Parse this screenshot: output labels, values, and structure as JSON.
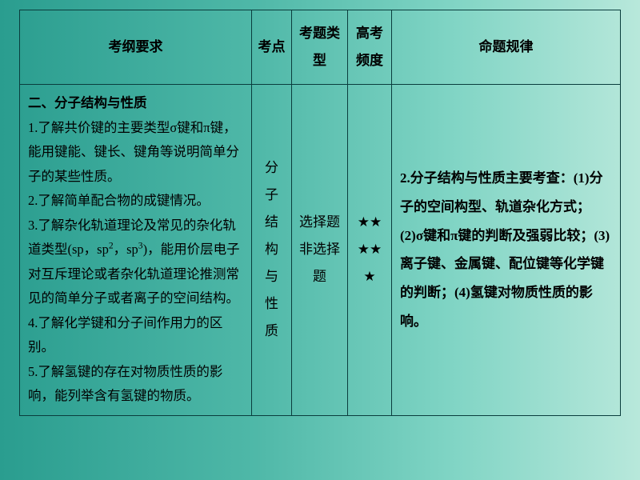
{
  "colors": {
    "border": "#0a3d3d",
    "text": "#000000",
    "bg_gradient_left": "#2a9d8f",
    "bg_gradient_right": "#b8e8db"
  },
  "typography": {
    "font_family": "SimSun",
    "header_fontsize_pt": 13,
    "body_fontsize_pt": 12,
    "line_height": 2.0
  },
  "table": {
    "headers": {
      "requirement": "考纲要求",
      "point": "考点",
      "qtype": "考题类型",
      "freq": "高考频度",
      "rule": "命题规律"
    },
    "row": {
      "requirement_title": "二、分子结构与性质",
      "requirement_items": [
        "1.了解共价键的主要类型σ键和π键，能用键能、键长、键角等说明简单分子的某些性质。",
        "2.了解简单配合物的成键情况。",
        "3.了解杂化轨道理论及常见的杂化轨道类型(sp，sp²，sp³)，能用价层电子对互斥理论或者杂化轨道理论推测常见的简单分子或者离子的空间结构。",
        "4.了解化学键和分子间作用力的区别。",
        "5.了解氢键的存在对物质性质的影响，能列举含有氢键的物质。"
      ],
      "point": "分子结构与性质",
      "qtype_lines": [
        "选择题",
        "非选择题"
      ],
      "freq_stars": "★★★★★",
      "rule_title": "2.分子结构与性质主要考查：",
      "rule_items": [
        "(1)分子的空间构型、轨道杂化方式；",
        "(2)σ键和π键的判断及强弱比较；",
        "(3)离子键、金属键、配位键等化学键的判断；",
        "(4)氢键对物质性质的影响。"
      ]
    }
  }
}
